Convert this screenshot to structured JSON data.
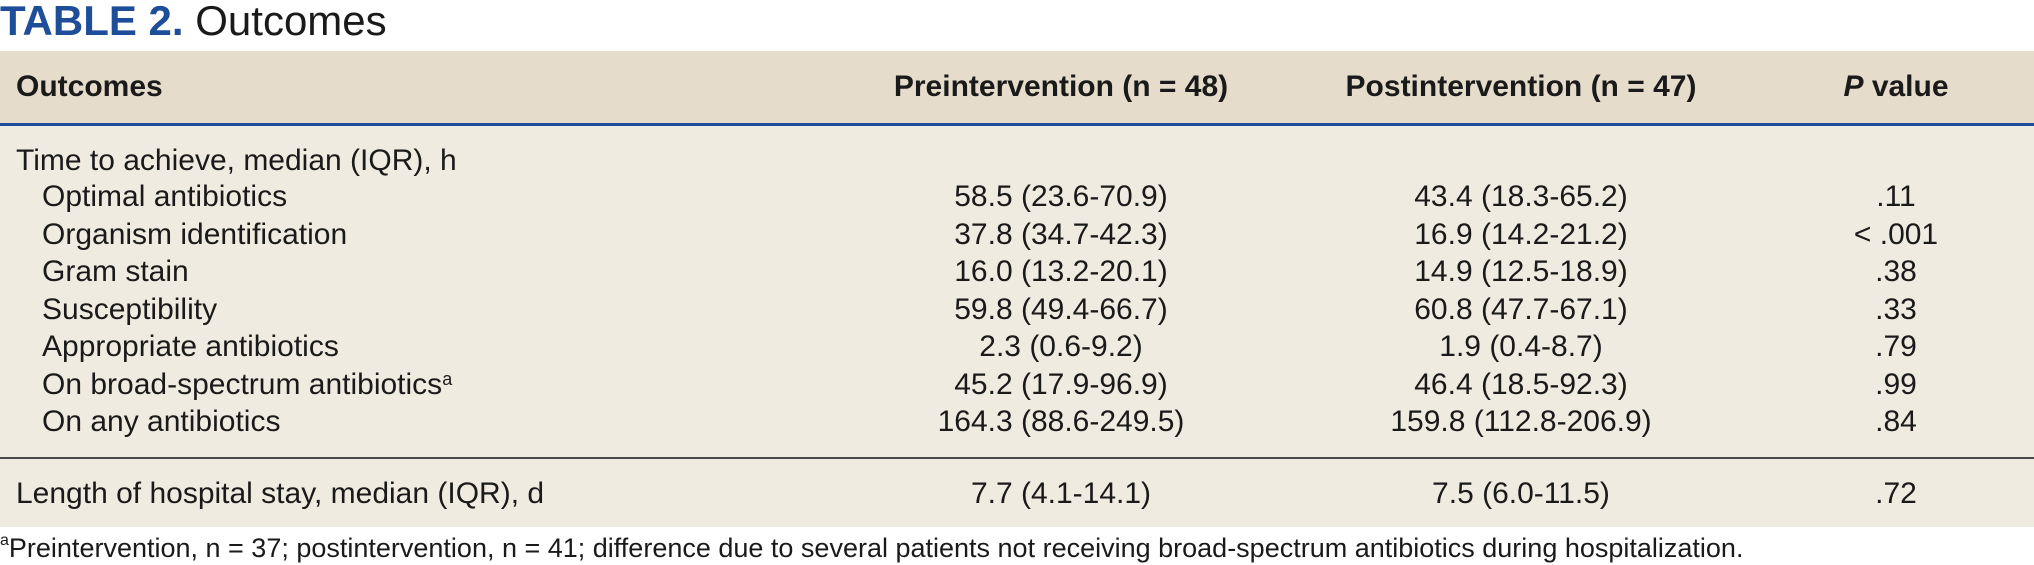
{
  "title": {
    "label": "TABLE 2.",
    "name": "Outcomes"
  },
  "columns": [
    "Outcomes",
    "Preintervention (n = 48)",
    "Postintervention (n = 47)",
    "value"
  ],
  "p_label": "P",
  "section_time": "Time to achieve, median (IQR), h",
  "rows": [
    {
      "label": "Optimal antibiotics",
      "pre": "58.5 (23.6-70.9)",
      "post": "43.4 (18.3-65.2)",
      "p": ".11"
    },
    {
      "label": "Organism identification",
      "pre": "37.8 (34.7-42.3)",
      "post": "16.9 (14.2-21.2)",
      "p": "< .001"
    },
    {
      "label": "Gram stain",
      "pre": "16.0 (13.2-20.1)",
      "post": "14.9 (12.5-18.9)",
      "p": ".38"
    },
    {
      "label": "Susceptibility",
      "pre": "59.8 (49.4-66.7)",
      "post": "60.8 (47.7-67.1)",
      "p": ".33"
    },
    {
      "label": "Appropriate antibiotics",
      "pre": "2.3 (0.6-9.2)",
      "post": "1.9 (0.4-8.7)",
      "p": ".79"
    },
    {
      "label": "On broad-spectrum antibiotics",
      "sup": "a",
      "pre": "45.2 (17.9-96.9)",
      "post": "46.4 (18.5-92.3)",
      "p": ".99"
    },
    {
      "label": "On any antibiotics",
      "pre": "164.3 (88.6-249.5)",
      "post": "159.8 (112.8-206.9)",
      "p": ".84"
    }
  ],
  "length_row": {
    "label": "Length of hospital stay, median (IQR), d",
    "pre": "7.7 (4.1-14.1)",
    "post": "7.5 (6.0-11.5)",
    "p": ".72"
  },
  "footnote": {
    "mark": "a",
    "text": "Preintervention, n = 37; postintervention, n = 41; difference due to several patients not receiving broad-spectrum antibiotics during hospitalization."
  }
}
